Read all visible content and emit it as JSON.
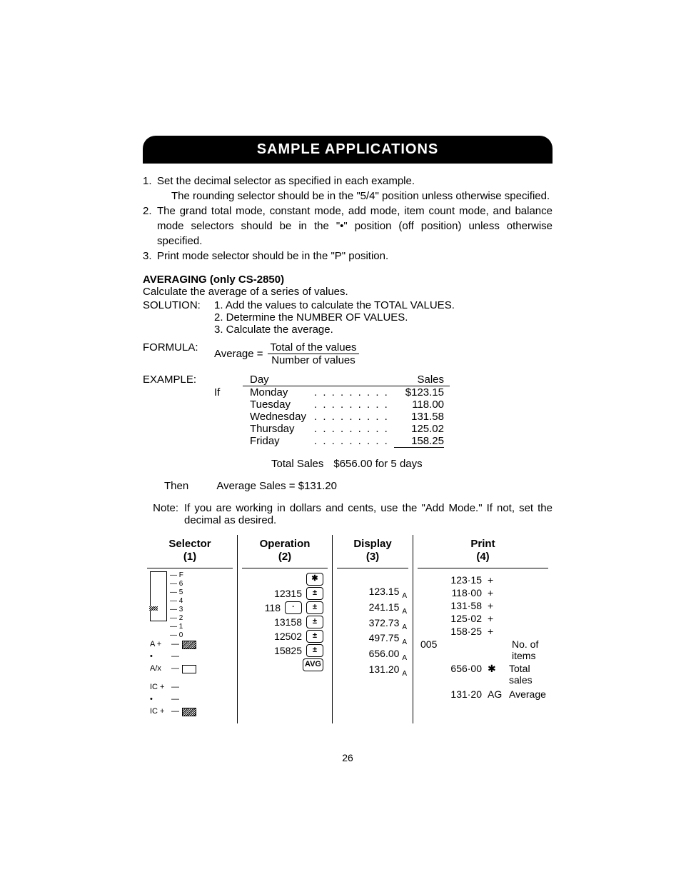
{
  "banner": "SAMPLE APPLICATIONS",
  "setup": {
    "items": [
      {
        "num": "1.",
        "text": "Set the decimal selector as specified in each example.",
        "sub": "The rounding selector should be in the \"5/4\" position unless otherwise specified."
      },
      {
        "num": "2.",
        "text": "The grand total mode, constant mode, add mode, item count mode, and balance mode selectors should be in the \"•\" position (off position) unless otherwise specified."
      },
      {
        "num": "3.",
        "text": "Print mode selector should be in the \"P\" position."
      }
    ]
  },
  "averaging": {
    "heading": "AVERAGING (only CS-2850)",
    "intro": "Calculate the average of a series of values.",
    "solution_label": "SOLUTION:",
    "solution": [
      "1.  Add the values to calculate the TOTAL VALUES.",
      "2.  Determine the NUMBER OF VALUES.",
      "3.  Calculate the average."
    ],
    "formula_label": "FORMULA:",
    "formula": {
      "lhs": "Average =",
      "top": "Total of the values",
      "bot": "Number of values"
    },
    "example_label": "EXAMPLE:",
    "if_label": "If",
    "columns": {
      "day": "Day",
      "sales": "Sales"
    },
    "rows": [
      {
        "day": "Monday",
        "sales": "$123.15"
      },
      {
        "day": "Tuesday",
        "sales": "118.00"
      },
      {
        "day": "Wednesday",
        "sales": "131.58"
      },
      {
        "day": "Thursday",
        "sales": "125.02"
      },
      {
        "day": "Friday",
        "sales": "158.25"
      }
    ],
    "total_label": "Total Sales",
    "total_value": "$656.00 for 5 days",
    "then_label": "Then",
    "then_value": "Average Sales = $131.20",
    "note_label": "Note:",
    "note_text": "If you are working in dollars and cents, use the \"Add Mode.\"  If not, set the decimal as desired."
  },
  "comp": {
    "headers": {
      "selector": [
        "Selector",
        "(1)"
      ],
      "operation": [
        "Operation",
        "(2)"
      ],
      "display": [
        "Display",
        "(3)"
      ],
      "print": [
        "Print",
        "(4)"
      ]
    },
    "selector_ticks": [
      "F",
      "6",
      "5",
      "4",
      "3",
      "2",
      "1",
      "0"
    ],
    "selector_highlight": "2",
    "selector_modes": [
      {
        "label": "A +",
        "filled": true
      },
      {
        "label": "•",
        "filled": false
      },
      {
        "label": "A/x",
        "filled": false,
        "empty": true
      }
    ],
    "selector_ic": [
      {
        "label": "IC +",
        "filled": false
      },
      {
        "label": "•",
        "filled": false
      },
      {
        "label": "IC +",
        "filled": true
      }
    ],
    "operations": [
      {
        "entry": "",
        "keys": [
          "✱"
        ]
      },
      {
        "entry": "12315",
        "keys": [
          "±"
        ]
      },
      {
        "entry": "118",
        "keys": [
          "·",
          "±"
        ]
      },
      {
        "entry": "13158",
        "keys": [
          "±"
        ]
      },
      {
        "entry": "12502",
        "keys": [
          "±"
        ]
      },
      {
        "entry": "15825",
        "keys": [
          "±"
        ]
      },
      {
        "entry": "",
        "keys": [
          "AVG"
        ]
      }
    ],
    "display": [
      "",
      "123.15",
      "241.15",
      "372.73",
      "497.75",
      "656.00",
      "131.20"
    ],
    "display_sub": "A",
    "print": [
      {
        "val": "",
        "sym": "",
        "note": ""
      },
      {
        "val": "123·15",
        "sym": "+",
        "note": ""
      },
      {
        "val": "118·00",
        "sym": "+",
        "note": ""
      },
      {
        "val": "131·58",
        "sym": "+",
        "note": ""
      },
      {
        "val": "125·02",
        "sym": "+",
        "note": ""
      },
      {
        "val": "158·25",
        "sym": "+",
        "note": ""
      },
      {
        "val": "005",
        "sym": "",
        "note": "No. of items",
        "left": true
      },
      {
        "val": "656·00",
        "sym": "✱",
        "note": "Total sales"
      },
      {
        "val": "",
        "sym": "",
        "note": ""
      },
      {
        "val": "131·20",
        "sym": "AG",
        "note": "Average"
      }
    ]
  },
  "page_number": "26"
}
